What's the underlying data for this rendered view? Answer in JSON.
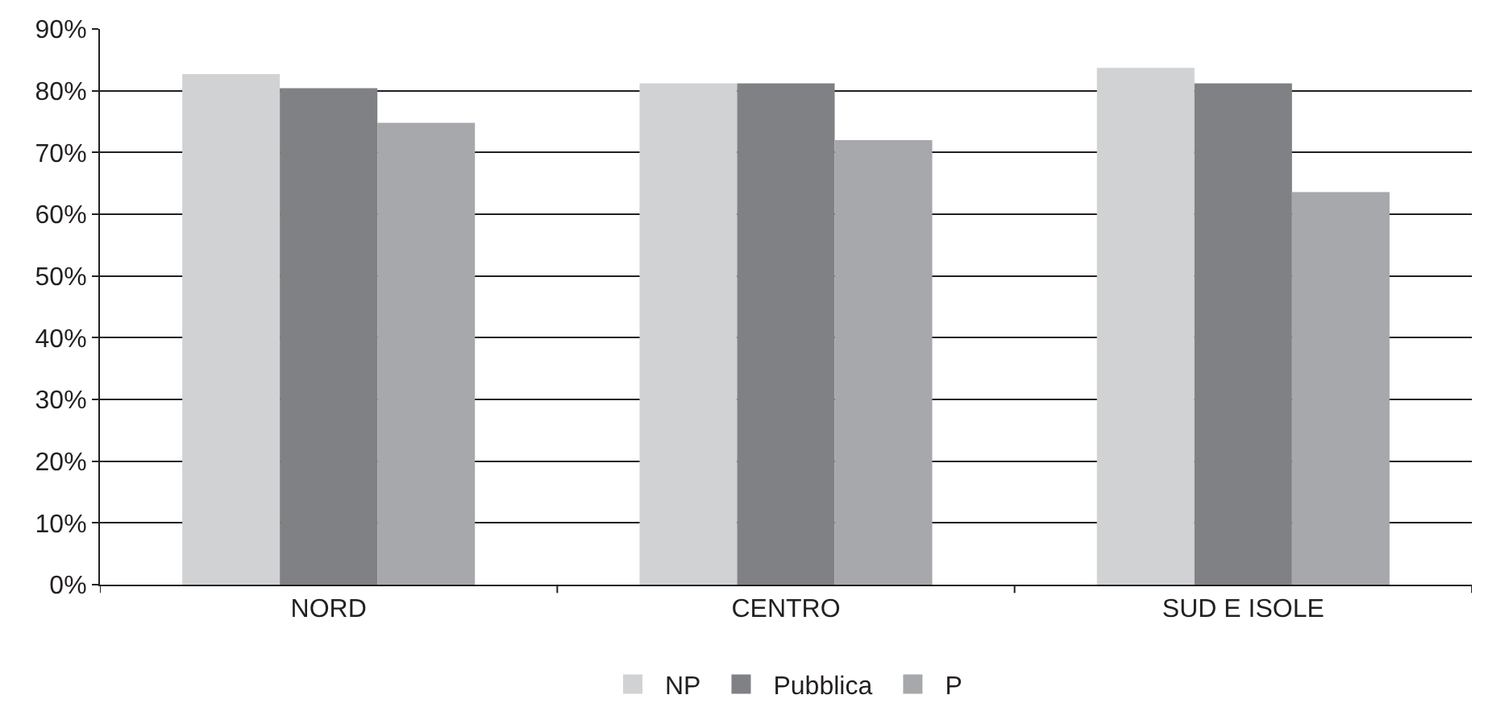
{
  "chart_data": {
    "type": "bar",
    "categories": [
      "NORD",
      "CENTRO",
      "SUD E ISOLE"
    ],
    "series": [
      {
        "name": "NP",
        "color": "#d1d2d4",
        "values": [
          82.7,
          81.2,
          83.7
        ]
      },
      {
        "name": "Pubblica",
        "color": "#808184",
        "values": [
          80.4,
          81.2,
          81.2
        ]
      },
      {
        "name": "P",
        "color": "#a7a8ab",
        "values": [
          74.8,
          72.0,
          63.6
        ]
      }
    ],
    "ylim": [
      0,
      90
    ],
    "yticks": [
      {
        "value": 0,
        "label": "0%"
      },
      {
        "value": 10,
        "label": "10%"
      },
      {
        "value": 20,
        "label": "20%"
      },
      {
        "value": 30,
        "label": "30%"
      },
      {
        "value": 40,
        "label": "40%"
      },
      {
        "value": 50,
        "label": "50%"
      },
      {
        "value": 60,
        "label": "60%"
      },
      {
        "value": 70,
        "label": "70%"
      },
      {
        "value": 80,
        "label": "80%"
      },
      {
        "value": 90,
        "label": "90%"
      }
    ],
    "grid": "y",
    "legend": "bottom"
  }
}
